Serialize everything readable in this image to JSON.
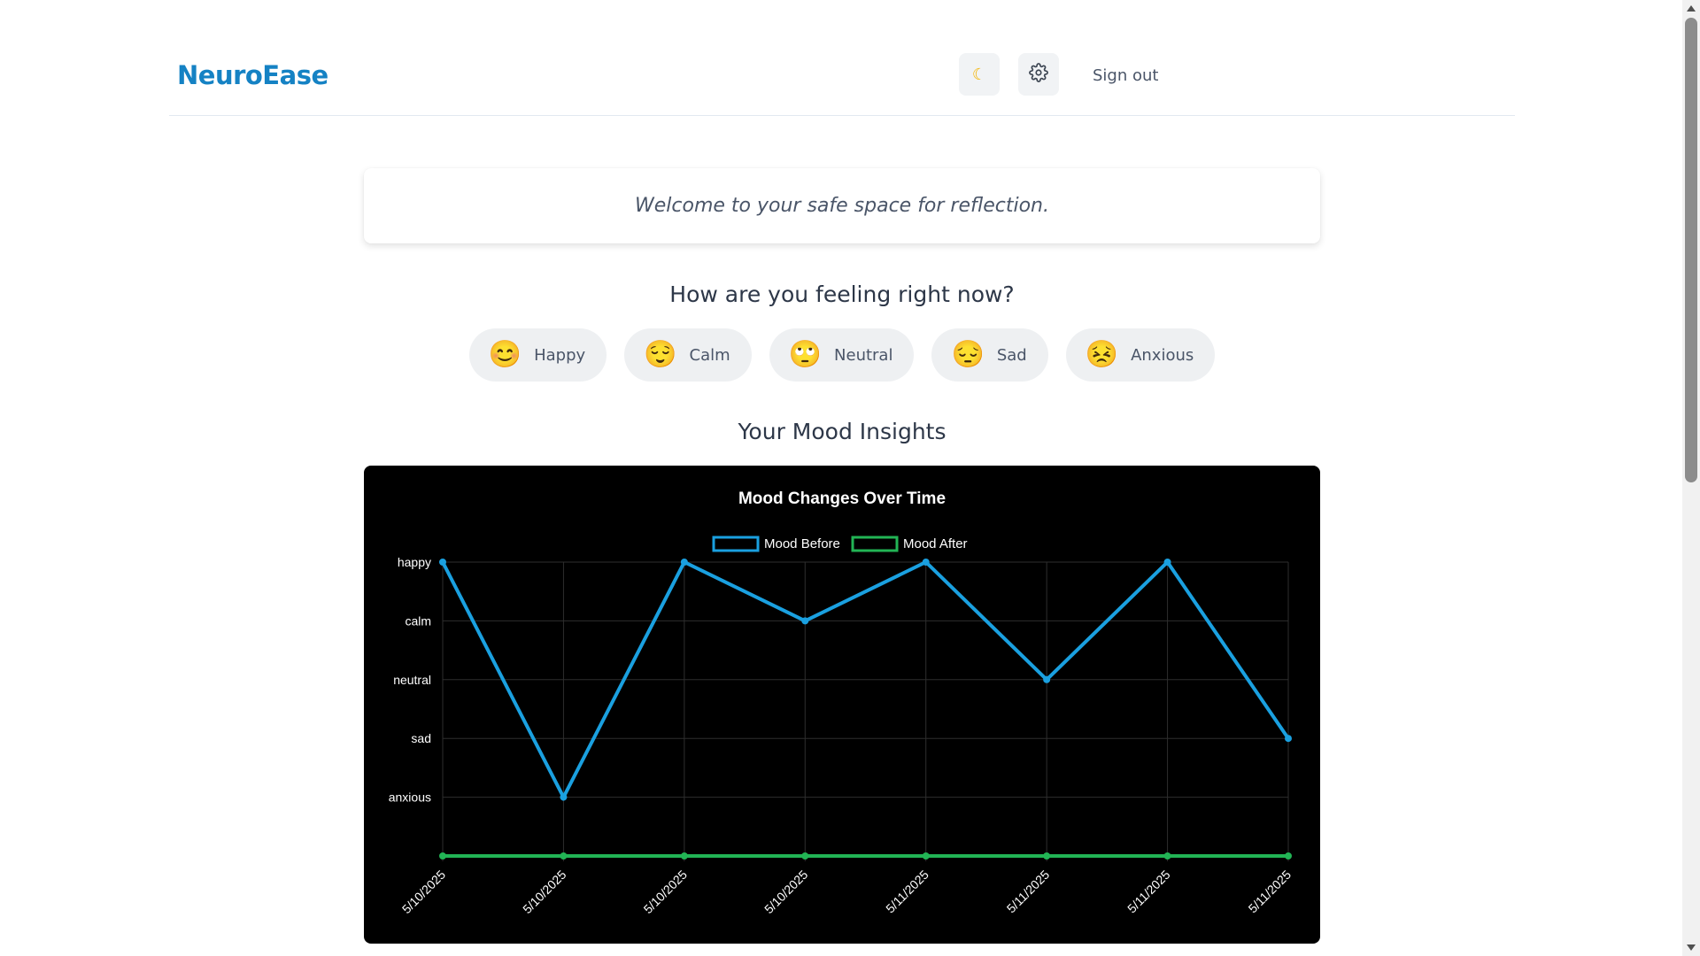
{
  "header": {
    "brand": "NeuroEase",
    "theme_icon": "moon-icon",
    "settings_icon": "gear-icon",
    "sign_out_label": "Sign out"
  },
  "welcome": {
    "message": "Welcome to your safe space for reflection."
  },
  "mood_picker": {
    "title": "How are you feeling right now?",
    "options": [
      {
        "emoji": "😊",
        "label": "Happy",
        "icon": "smiling-face-icon"
      },
      {
        "emoji": "😌",
        "label": "Calm",
        "icon": "relieved-face-icon"
      },
      {
        "emoji": "🙄",
        "label": "Neutral",
        "icon": "neutral-face-icon"
      },
      {
        "emoji": "😔",
        "label": "Sad",
        "icon": "pensive-face-icon"
      },
      {
        "emoji": "😣",
        "label": "Anxious",
        "icon": "persevering-face-icon"
      }
    ]
  },
  "insights": {
    "title": "Your Mood Insights"
  },
  "colors": {
    "brand": "#1582c4",
    "mood_before": "#1aa0e0",
    "mood_after": "#22b455",
    "chart_background": "#000000"
  },
  "chart_data": {
    "type": "line",
    "title": "Mood Changes Over Time",
    "categories": [
      "5/10/2025",
      "5/10/2025",
      "5/10/2025",
      "5/10/2025",
      "5/11/2025",
      "5/11/2025",
      "5/11/2025",
      "5/11/2025"
    ],
    "y_categories": [
      "happy",
      "calm",
      "neutral",
      "sad",
      "anxious"
    ],
    "series": [
      {
        "name": "Mood Before",
        "values": [
          "happy",
          "anxious",
          "happy",
          "calm",
          "happy",
          "neutral",
          "happy",
          "sad"
        ]
      },
      {
        "name": "Mood After",
        "values": [
          null,
          null,
          null,
          null,
          null,
          null,
          null,
          null
        ]
      }
    ],
    "legend": "top-center",
    "grid": true,
    "x_tick_rotation": "diagonal"
  }
}
